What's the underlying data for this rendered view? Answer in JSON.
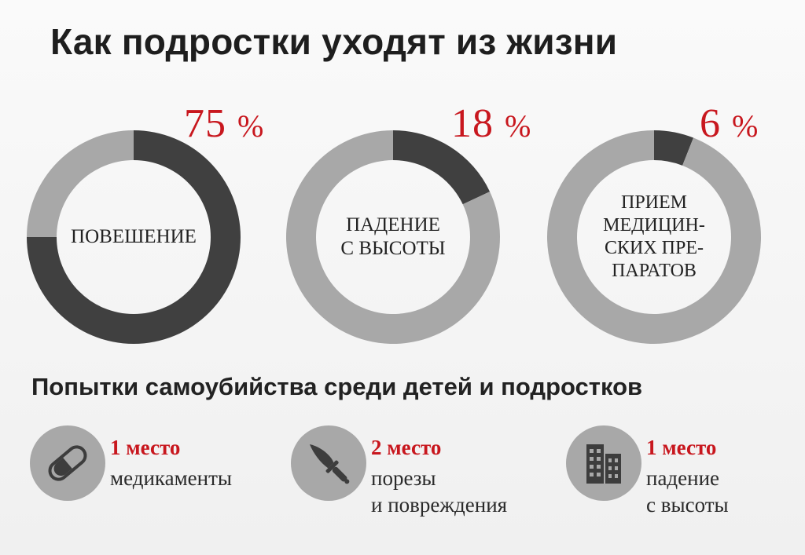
{
  "title": "Как подростки уходят из жизни",
  "colors": {
    "accent": "#c8171e",
    "dark": "#404040",
    "light": "#a8a8a8",
    "text": "#222222"
  },
  "chart_data": {
    "type": "pie",
    "title": "Как подростки уходят из жизни",
    "series": [
      {
        "name": "ПОВЕШЕНИЕ",
        "value": 75,
        "label": "75%",
        "center_lines": [
          "ПОВЕШЕНИЕ"
        ]
      },
      {
        "name": "ПАДЕНИЕ С ВЫСОТЫ",
        "value": 18,
        "label": "18%",
        "center_lines": [
          "ПАДЕНИЕ",
          "С ВЫСОТЫ"
        ]
      },
      {
        "name": "ПРИЕМ МЕДИЦИНСКИХ ПРЕПАРАТОВ",
        "value": 6,
        "label": "6%",
        "center_lines": [
          "ПРИЕМ",
          "МЕДИЦИН-",
          "СКИХ ПРЕ-",
          "ПАРАТОВ"
        ]
      }
    ]
  },
  "attempts": {
    "title": "Попытки  самоубийства среди детей и подростков",
    "items": [
      {
        "icon": "pill-icon",
        "rank": "1 место",
        "lines": [
          "медикаменты"
        ]
      },
      {
        "icon": "knife-icon",
        "rank": "2 место",
        "lines": [
          "порезы",
          "и повреждения"
        ]
      },
      {
        "icon": "building-icon",
        "rank": "1 место",
        "lines": [
          "падение",
          "с высоты"
        ]
      }
    ]
  }
}
